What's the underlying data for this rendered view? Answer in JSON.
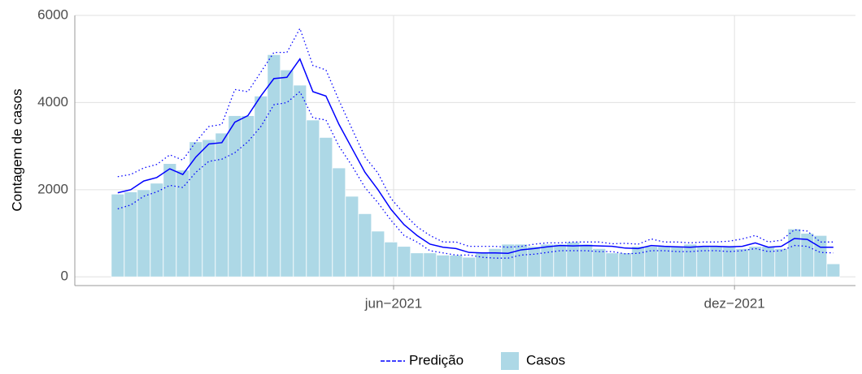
{
  "chart_data": {
    "type": "combo",
    "y_label": "Contagem de casos",
    "x": [
      0,
      1,
      2,
      3,
      4,
      5,
      6,
      7,
      8,
      9,
      10,
      11,
      12,
      13,
      14,
      15,
      16,
      17,
      18,
      19,
      20,
      21,
      22,
      23,
      24,
      25,
      26,
      27,
      28,
      29,
      30,
      31,
      32,
      33,
      34,
      35,
      36,
      37,
      38,
      39,
      40,
      41,
      42,
      43,
      44,
      45,
      46,
      47,
      48,
      49,
      50,
      51,
      52,
      53,
      54,
      55
    ],
    "xlim": [
      -3.3,
      56.7
    ],
    "xticks": [
      {
        "value": 21.2,
        "label": "jun−2021"
      },
      {
        "value": 47.4,
        "label": "dez−2021"
      }
    ],
    "ylim": [
      -200,
      6000
    ],
    "yticks": [
      0,
      2000,
      4000,
      6000
    ],
    "grid": true,
    "legend": "bottom",
    "series": [
      {
        "name": "Predição",
        "type": "line",
        "color": "#0000ff",
        "values": [
          1930,
          2000,
          2200,
          2280,
          2480,
          2350,
          2750,
          3050,
          3080,
          3550,
          3700,
          4150,
          4550,
          4580,
          5000,
          4250,
          4150,
          3500,
          2950,
          2400,
          2000,
          1550,
          1200,
          950,
          750,
          680,
          650,
          560,
          550,
          550,
          540,
          620,
          650,
          690,
          720,
          710,
          720,
          710,
          700,
          660,
          650,
          720,
          700,
          690,
          680,
          700,
          700,
          690,
          700,
          780,
          680,
          700,
          880,
          860,
          680,
          680
        ],
        "upper": [
          2300,
          2350,
          2500,
          2580,
          2800,
          2680,
          3100,
          3450,
          3500,
          4300,
          4250,
          4700,
          5150,
          5150,
          5700,
          4850,
          4750,
          4050,
          3400,
          2750,
          2380,
          1800,
          1450,
          1150,
          950,
          800,
          800,
          700,
          700,
          700,
          680,
          700,
          750,
          780,
          780,
          800,
          800,
          800,
          760,
          770,
          750,
          870,
          800,
          800,
          780,
          800,
          800,
          820,
          870,
          950,
          800,
          840,
          1080,
          1050,
          800,
          800
        ],
        "lower": [
          1560,
          1650,
          1850,
          1950,
          2100,
          2050,
          2400,
          2650,
          2700,
          2850,
          3100,
          3450,
          3950,
          4000,
          4250,
          3650,
          3600,
          3000,
          2550,
          2050,
          1700,
          1300,
          950,
          800,
          600,
          550,
          500,
          500,
          450,
          430,
          430,
          500,
          520,
          560,
          600,
          600,
          600,
          580,
          580,
          530,
          540,
          600,
          600,
          580,
          580,
          600,
          600,
          580,
          600,
          650,
          580,
          600,
          720,
          700,
          560,
          550
        ]
      },
      {
        "name": "Casos",
        "type": "bar",
        "color": "#add8e6",
        "values": [
          1900,
          1950,
          2000,
          2150,
          2600,
          2450,
          3100,
          3150,
          3300,
          3700,
          3700,
          4150,
          5100,
          4750,
          4400,
          3600,
          3200,
          2500,
          1850,
          1450,
          1050,
          800,
          700,
          550,
          550,
          500,
          500,
          450,
          550,
          650,
          750,
          750,
          700,
          750,
          750,
          800,
          750,
          650,
          550,
          550,
          700,
          700,
          700,
          700,
          750,
          700,
          700,
          700,
          650,
          700,
          700,
          650,
          1100,
          1000,
          950,
          300
        ]
      }
    ]
  }
}
